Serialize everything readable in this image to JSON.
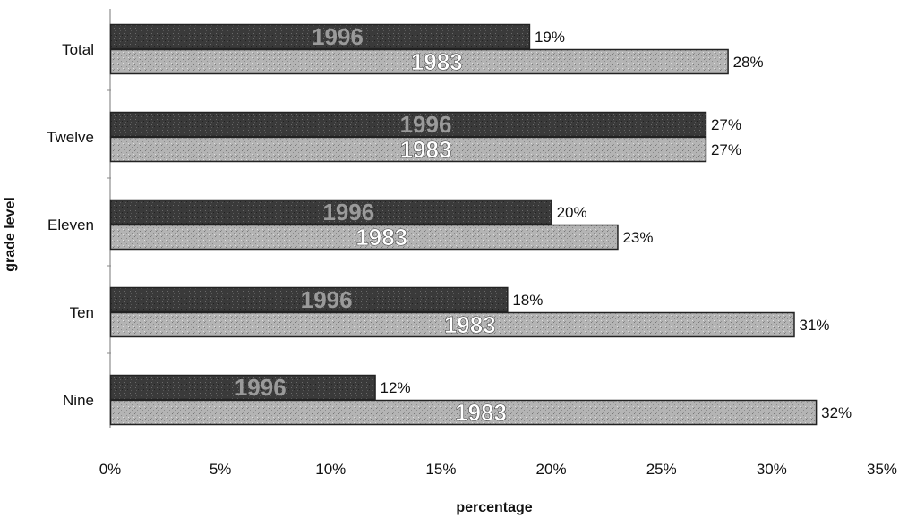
{
  "chart_data": {
    "type": "bar",
    "orientation": "horizontal",
    "title": "",
    "xlabel": "percentage",
    "ylabel": "grade level",
    "categories": [
      "Total",
      "Twelve",
      "Eleven",
      "Ten",
      "Nine"
    ],
    "series": [
      {
        "name": "1996",
        "values": [
          19,
          27,
          20,
          18,
          12
        ],
        "color": "#3a3a3a"
      },
      {
        "name": "1983",
        "values": [
          28,
          27,
          23,
          31,
          32
        ],
        "color": "#b4b4b4"
      }
    ],
    "xlim": [
      0,
      35
    ],
    "x_ticks": [
      "0%",
      "5%",
      "10%",
      "15%",
      "20%",
      "25%",
      "30%",
      "35%"
    ],
    "value_suffix": "%",
    "grid": false,
    "legend": "none (series names printed inside bars)"
  }
}
